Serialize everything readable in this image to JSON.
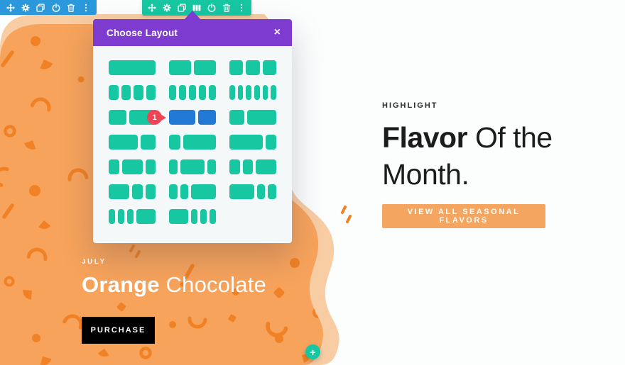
{
  "colors": {
    "toolbar_blue": "#2c98dc",
    "teal": "#16c7a2",
    "purple": "#7e3bd0",
    "selected_blue": "#2178d5",
    "badge_red": "#ef4456",
    "orange": "#f7a35c",
    "orange_dark": "#f08125",
    "orange_light": "#f8cda4",
    "btn_orange": "#f4a55f"
  },
  "toolbars": {
    "section": {
      "icons": [
        "move-icon",
        "gear-icon",
        "duplicate-icon",
        "power-icon",
        "trash-icon",
        "ellipsis-icon"
      ]
    },
    "row": {
      "icons": [
        "move-icon",
        "gear-icon",
        "duplicate-icon",
        "columns-icon",
        "power-icon",
        "trash-icon",
        "ellipsis-icon"
      ]
    }
  },
  "modal": {
    "title": "Choose Layout",
    "close_glyph": "×",
    "layout_rows": [
      [
        {
          "cols": [
            1
          ]
        },
        {
          "cols": [
            1,
            1
          ]
        },
        {
          "cols": [
            1,
            1,
            1
          ]
        }
      ],
      [
        {
          "cols": [
            1,
            1,
            1,
            1
          ]
        },
        {
          "cols": [
            1,
            1,
            1,
            1,
            1
          ]
        },
        {
          "cols": [
            1,
            1,
            1,
            1,
            1,
            1
          ]
        }
      ],
      [
        {
          "cols": [
            2,
            3
          ]
        },
        {
          "cols": [
            3,
            2
          ],
          "selected": true,
          "badge": "1"
        },
        {
          "cols": [
            1,
            2
          ]
        }
      ],
      [
        {
          "cols": [
            2,
            1
          ]
        },
        {
          "cols": [
            1,
            3
          ]
        },
        {
          "cols": [
            3,
            1
          ]
        }
      ],
      [
        {
          "cols": [
            1,
            2,
            1
          ]
        },
        {
          "cols": [
            1,
            3,
            1
          ]
        },
        {
          "cols": [
            1,
            1,
            2
          ]
        }
      ],
      [
        {
          "cols": [
            2,
            1,
            1
          ]
        },
        {
          "cols": [
            1,
            1,
            3
          ]
        },
        {
          "cols": [
            3,
            1,
            1
          ]
        }
      ],
      [
        {
          "cols": [
            1,
            1,
            1,
            3
          ]
        },
        {
          "cols": [
            3,
            1,
            1,
            1
          ]
        }
      ]
    ]
  },
  "hero": {
    "eyebrow": "HIGHLIGHT",
    "title_bold": "Flavor",
    "title_light": " Of the Month.",
    "cta": "VIEW ALL SEASONAL FLAVORS"
  },
  "feature": {
    "month": "JULY",
    "name_bold": "Orange",
    "name_light": " Chocolate",
    "cta": "PURCHASE"
  },
  "fab": {
    "plus_glyph": "+"
  }
}
